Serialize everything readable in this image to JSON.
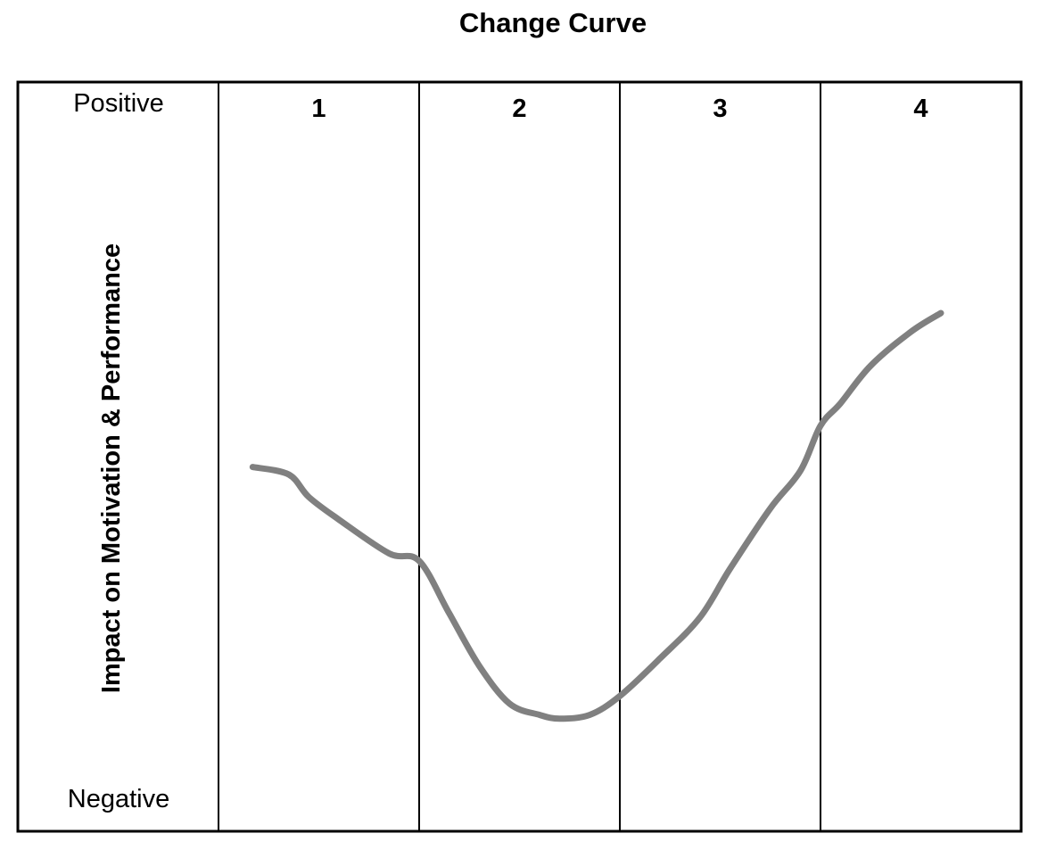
{
  "chart_data": {
    "type": "line",
    "title": "Change Curve",
    "ylabel": "Impact on Motivation & Performance",
    "y_top_label": "Positive",
    "y_bottom_label": "Negative",
    "categories": [
      "1",
      "2",
      "3",
      "4"
    ],
    "xlim": [
      0,
      4
    ],
    "ylim": [
      0,
      100
    ],
    "grid": false,
    "legend": "none",
    "series": [
      {
        "values_x": [
          0.17,
          0.35,
          0.45,
          0.6,
          0.85,
          1.0,
          1.15,
          1.3,
          1.45,
          1.6,
          1.7,
          1.85,
          2.0,
          2.2,
          2.4,
          2.55,
          2.75,
          2.9,
          3.0,
          3.1,
          3.25,
          3.45,
          3.6
        ],
        "values_y": [
          48.5,
          47.5,
          44.5,
          41.5,
          37,
          36,
          29,
          22,
          17,
          15.5,
          15,
          15.5,
          18,
          23,
          28.5,
          35,
          43,
          48,
          54,
          57,
          62,
          66.5,
          69
        ],
        "color": "#808080"
      }
    ]
  }
}
